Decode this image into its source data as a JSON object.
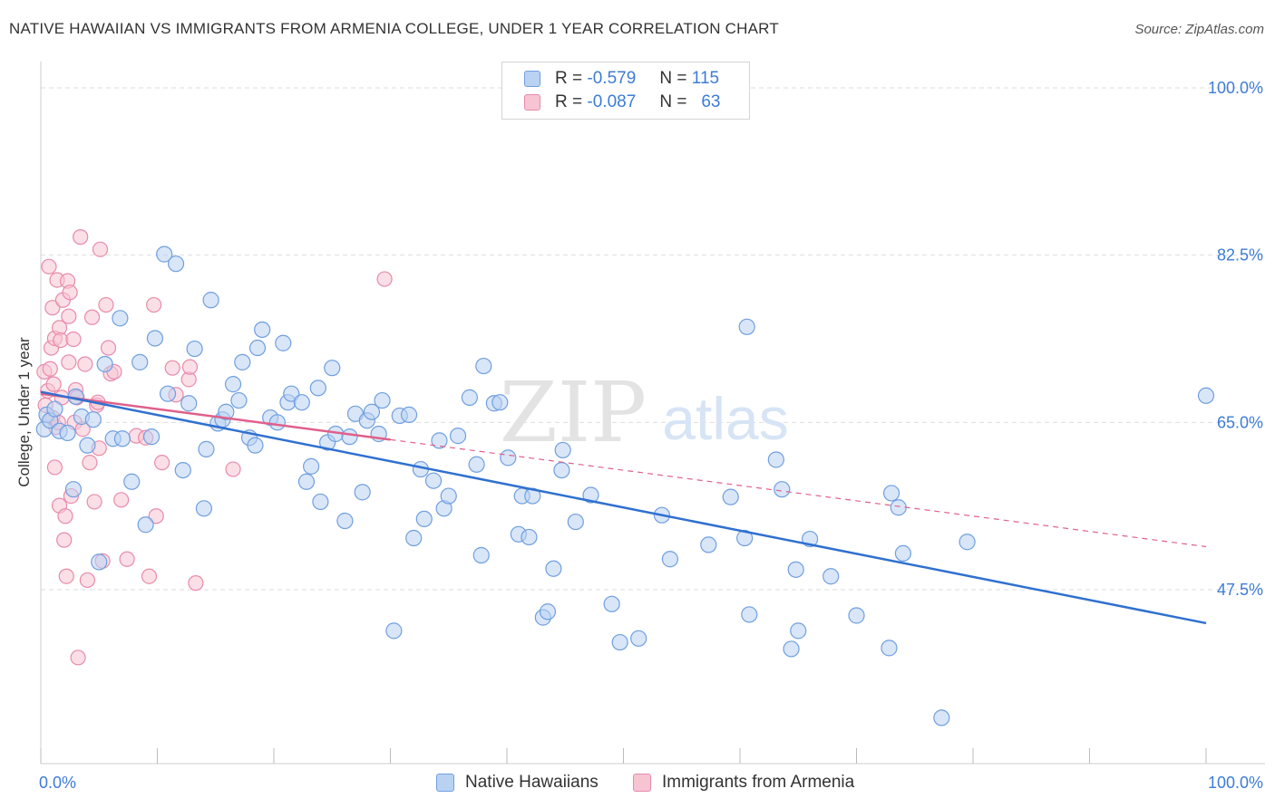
{
  "title": "NATIVE HAWAIIAN VS IMMIGRANTS FROM ARMENIA COLLEGE, UNDER 1 YEAR CORRELATION CHART",
  "source": "Source: ZipAtlas.com",
  "watermark": {
    "zip": "ZIP",
    "atlas": "atlas"
  },
  "legend": {
    "rows": [
      {
        "r_label": "R =",
        "r_value": "-0.579",
        "n_label": "N =",
        "n_value": "115"
      },
      {
        "r_label": "R =",
        "r_value": "-0.087",
        "n_label": "N =",
        "n_value": "63"
      }
    ]
  },
  "bottom_legend": {
    "native": "Native Hawaiians",
    "armenia": "Immigrants from Armenia"
  },
  "colors": {
    "native_fill": "#b9d2f2",
    "native_stroke": "#6f9fe0",
    "native_line": "#2f70d0",
    "armenia_fill": "#f7c4d4",
    "armenia_stroke": "#e88aab",
    "armenia_line": "#e0608a",
    "axis_label": "#3d7cd6",
    "grid": "#dedede"
  },
  "chart_data": {
    "type": "scatter",
    "title": "NATIVE HAWAIIAN VS IMMIGRANTS FROM ARMENIA COLLEGE, UNDER 1 YEAR CORRELATION CHART",
    "xlabel": "",
    "ylabel": "College, Under 1 year",
    "xlim": [
      0,
      100
    ],
    "ylim": [
      30,
      100
    ],
    "x_tick_labels": [
      "0.0%",
      "100.0%"
    ],
    "y_ticks": [
      47.5,
      65.0,
      82.5,
      100.0
    ],
    "y_tick_labels": [
      "47.5%",
      "65.0%",
      "82.5%",
      "100.0%"
    ],
    "grid": true,
    "legend_position": "top-center",
    "series": [
      {
        "name": "Native Hawaiians",
        "trend": {
          "x": [
            0,
            100
          ],
          "y": [
            68.2,
            44.0
          ]
        },
        "points": [
          [
            0.3,
            64.3
          ],
          [
            0.5,
            65.8
          ],
          [
            0.8,
            65.2
          ],
          [
            1.2,
            66.4
          ],
          [
            1.6,
            64.1
          ],
          [
            2.3,
            63.9
          ],
          [
            2.8,
            58.0
          ],
          [
            3.0,
            67.7
          ],
          [
            3.5,
            65.6
          ],
          [
            4.0,
            62.6
          ],
          [
            4.5,
            65.3
          ],
          [
            5.0,
            50.4
          ],
          [
            5.5,
            71.1
          ],
          [
            6.2,
            63.3
          ],
          [
            6.8,
            75.9
          ],
          [
            7.0,
            63.3
          ],
          [
            7.8,
            58.8
          ],
          [
            8.5,
            71.3
          ],
          [
            9.0,
            54.3
          ],
          [
            9.5,
            63.5
          ],
          [
            9.8,
            73.8
          ],
          [
            10.6,
            82.6
          ],
          [
            10.9,
            68.0
          ],
          [
            11.6,
            81.6
          ],
          [
            12.2,
            60.0
          ],
          [
            12.7,
            67.0
          ],
          [
            13.2,
            72.7
          ],
          [
            14.0,
            56.0
          ],
          [
            14.2,
            62.2
          ],
          [
            14.6,
            77.8
          ],
          [
            15.2,
            64.9
          ],
          [
            15.6,
            65.3
          ],
          [
            15.9,
            66.1
          ],
          [
            16.5,
            69.0
          ],
          [
            17.0,
            67.3
          ],
          [
            17.3,
            71.3
          ],
          [
            17.9,
            63.4
          ],
          [
            18.4,
            62.6
          ],
          [
            18.6,
            72.8
          ],
          [
            19.0,
            74.7
          ],
          [
            19.7,
            65.5
          ],
          [
            20.3,
            65.0
          ],
          [
            20.8,
            73.3
          ],
          [
            21.2,
            67.1
          ],
          [
            21.5,
            68.0
          ],
          [
            22.4,
            67.1
          ],
          [
            22.8,
            58.8
          ],
          [
            23.2,
            60.4
          ],
          [
            23.8,
            68.6
          ],
          [
            24.0,
            56.7
          ],
          [
            24.6,
            62.9
          ],
          [
            25.0,
            70.7
          ],
          [
            25.3,
            63.8
          ],
          [
            26.1,
            54.7
          ],
          [
            26.5,
            63.5
          ],
          [
            27.0,
            65.9
          ],
          [
            27.6,
            57.7
          ],
          [
            28.0,
            65.2
          ],
          [
            28.4,
            66.1
          ],
          [
            29.0,
            63.8
          ],
          [
            29.3,
            67.3
          ],
          [
            30.3,
            43.2
          ],
          [
            30.8,
            65.7
          ],
          [
            31.6,
            65.8
          ],
          [
            32.0,
            52.9
          ],
          [
            32.6,
            60.1
          ],
          [
            32.9,
            54.9
          ],
          [
            33.7,
            58.9
          ],
          [
            34.2,
            63.1
          ],
          [
            34.6,
            56.0
          ],
          [
            35.0,
            57.3
          ],
          [
            35.8,
            63.6
          ],
          [
            36.8,
            67.6
          ],
          [
            37.4,
            60.6
          ],
          [
            37.8,
            51.1
          ],
          [
            38.0,
            70.9
          ],
          [
            38.9,
            67.0
          ],
          [
            39.4,
            67.1
          ],
          [
            40.1,
            61.3
          ],
          [
            41.0,
            53.3
          ],
          [
            41.3,
            57.3
          ],
          [
            41.9,
            53.0
          ],
          [
            42.2,
            57.3
          ],
          [
            43.1,
            44.6
          ],
          [
            43.5,
            45.2
          ],
          [
            44.0,
            49.7
          ],
          [
            44.7,
            60.0
          ],
          [
            44.8,
            62.1
          ],
          [
            45.9,
            54.6
          ],
          [
            47.2,
            57.4
          ],
          [
            49.0,
            46.0
          ],
          [
            49.7,
            42.0
          ],
          [
            51.3,
            42.4
          ],
          [
            53.3,
            55.3
          ],
          [
            54.0,
            50.7
          ],
          [
            57.3,
            52.2
          ],
          [
            59.2,
            57.2
          ],
          [
            60.4,
            52.9
          ],
          [
            60.6,
            75.0
          ],
          [
            60.8,
            44.9
          ],
          [
            63.1,
            61.1
          ],
          [
            63.6,
            58.0
          ],
          [
            64.4,
            41.3
          ],
          [
            64.8,
            49.6
          ],
          [
            65.0,
            43.2
          ],
          [
            66.0,
            52.8
          ],
          [
            67.8,
            48.9
          ],
          [
            70.0,
            44.8
          ],
          [
            72.8,
            41.4
          ],
          [
            73.6,
            56.1
          ],
          [
            74.0,
            51.3
          ],
          [
            73.0,
            57.6
          ],
          [
            77.3,
            34.1
          ],
          [
            79.5,
            52.5
          ],
          [
            100.0,
            67.8
          ]
        ]
      },
      {
        "name": "Immigrants from Armenia",
        "trend": {
          "x": [
            0,
            100
          ],
          "y": [
            68.0,
            52.0
          ]
        },
        "trend_solid_to_x": 30,
        "points": [
          [
            0.3,
            70.3
          ],
          [
            0.4,
            66.8
          ],
          [
            0.6,
            68.3
          ],
          [
            0.7,
            81.3
          ],
          [
            0.8,
            70.6
          ],
          [
            0.9,
            72.8
          ],
          [
            1.0,
            77.0
          ],
          [
            1.0,
            65.5
          ],
          [
            1.1,
            69.0
          ],
          [
            1.2,
            73.8
          ],
          [
            1.2,
            60.3
          ],
          [
            1.3,
            64.5
          ],
          [
            1.4,
            79.9
          ],
          [
            1.5,
            65.0
          ],
          [
            1.6,
            74.9
          ],
          [
            1.6,
            56.3
          ],
          [
            1.7,
            73.6
          ],
          [
            1.8,
            67.6
          ],
          [
            1.9,
            77.8
          ],
          [
            2.0,
            52.7
          ],
          [
            2.1,
            55.2
          ],
          [
            2.2,
            48.9
          ],
          [
            2.3,
            79.8
          ],
          [
            2.4,
            76.1
          ],
          [
            2.4,
            71.3
          ],
          [
            2.5,
            78.6
          ],
          [
            2.6,
            57.3
          ],
          [
            2.8,
            73.7
          ],
          [
            2.9,
            65.0
          ],
          [
            3.0,
            68.4
          ],
          [
            3.1,
            67.6
          ],
          [
            3.2,
            40.4
          ],
          [
            3.4,
            84.4
          ],
          [
            3.6,
            64.3
          ],
          [
            3.8,
            71.1
          ],
          [
            4.0,
            48.5
          ],
          [
            4.2,
            60.8
          ],
          [
            4.4,
            76.0
          ],
          [
            4.6,
            56.7
          ],
          [
            4.8,
            66.8
          ],
          [
            4.9,
            67.1
          ],
          [
            5.0,
            62.3
          ],
          [
            5.1,
            83.1
          ],
          [
            5.3,
            50.5
          ],
          [
            5.6,
            77.3
          ],
          [
            5.8,
            72.8
          ],
          [
            6.0,
            70.1
          ],
          [
            6.3,
            70.3
          ],
          [
            6.9,
            56.9
          ],
          [
            7.4,
            50.7
          ],
          [
            8.2,
            63.6
          ],
          [
            9.0,
            63.4
          ],
          [
            9.3,
            48.9
          ],
          [
            9.7,
            77.3
          ],
          [
            9.9,
            55.2
          ],
          [
            10.4,
            60.8
          ],
          [
            11.3,
            70.7
          ],
          [
            11.6,
            67.9
          ],
          [
            12.7,
            69.5
          ],
          [
            12.8,
            70.8
          ],
          [
            13.3,
            48.2
          ],
          [
            16.5,
            60.1
          ],
          [
            29.5,
            80.0
          ]
        ]
      }
    ]
  }
}
